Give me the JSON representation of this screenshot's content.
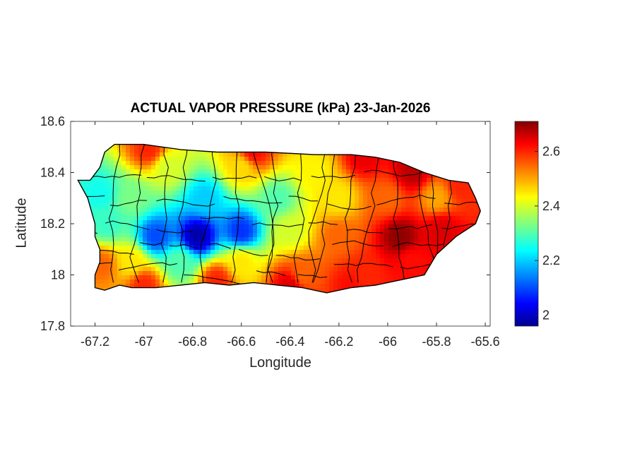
{
  "chart_data": {
    "type": "heatmap",
    "title": "ACTUAL VAPOR PRESSURE (kPa) 23-Jan-2026",
    "xlabel": "Longitude",
    "ylabel": "Latitude",
    "xlim": [
      -67.3,
      -65.58
    ],
    "ylim": [
      17.8,
      18.6
    ],
    "x_ticks": [
      -67.2,
      -67,
      -66.8,
      -66.6,
      -66.4,
      -66.2,
      -66,
      -65.8,
      -65.6
    ],
    "x_tick_labels": [
      "-67.2",
      "-67",
      "-66.8",
      "-66.6",
      "-66.4",
      "-66.2",
      "-66",
      "-65.8",
      "-65.6"
    ],
    "y_ticks": [
      17.8,
      18,
      18.2,
      18.4,
      18.6
    ],
    "y_tick_labels": [
      "17.8",
      "18",
      "18.2",
      "18.4",
      "18.6"
    ],
    "colorbar": {
      "colormap": "jet",
      "range": [
        1.96,
        2.71
      ],
      "ticks": [
        2,
        2.2,
        2.4,
        2.6
      ],
      "tick_labels": [
        "2",
        "2.2",
        "2.4",
        "2.6"
      ],
      "colors": [
        "#00008f",
        "#0000ff",
        "#00ffff",
        "#ffff00",
        "#ff0000",
        "#800000"
      ]
    },
    "outline_color": "#000000",
    "island_outline": [
      [
        -67.27,
        18.37
      ],
      [
        -67.22,
        18.37
      ],
      [
        -67.18,
        18.42
      ],
      [
        -67.16,
        18.48
      ],
      [
        -67.12,
        18.51
      ],
      [
        -67.0,
        18.51
      ],
      [
        -66.85,
        18.49
      ],
      [
        -66.7,
        18.48
      ],
      [
        -66.5,
        18.48
      ],
      [
        -66.3,
        18.47
      ],
      [
        -66.15,
        18.47
      ],
      [
        -66.05,
        18.46
      ],
      [
        -65.95,
        18.44
      ],
      [
        -65.85,
        18.4
      ],
      [
        -65.75,
        18.37
      ],
      [
        -65.67,
        18.36
      ],
      [
        -65.64,
        18.3
      ],
      [
        -65.62,
        18.25
      ],
      [
        -65.64,
        18.2
      ],
      [
        -65.72,
        18.15
      ],
      [
        -65.8,
        18.08
      ],
      [
        -65.85,
        18.0
      ],
      [
        -65.95,
        17.98
      ],
      [
        -66.05,
        17.96
      ],
      [
        -66.15,
        17.95
      ],
      [
        -66.25,
        17.93
      ],
      [
        -66.35,
        17.95
      ],
      [
        -66.45,
        17.96
      ],
      [
        -66.55,
        17.97
      ],
      [
        -66.65,
        17.96
      ],
      [
        -66.75,
        17.97
      ],
      [
        -66.85,
        17.96
      ],
      [
        -66.95,
        17.95
      ],
      [
        -67.05,
        17.95
      ],
      [
        -67.1,
        17.96
      ],
      [
        -67.16,
        17.94
      ],
      [
        -67.2,
        17.95
      ],
      [
        -67.2,
        18.0
      ],
      [
        -67.18,
        18.05
      ],
      [
        -67.18,
        18.1
      ],
      [
        -67.2,
        18.15
      ],
      [
        -67.2,
        18.2
      ],
      [
        -67.23,
        18.3
      ],
      [
        -67.27,
        18.37
      ]
    ],
    "value_field": [
      {
        "lon": -66.98,
        "lat": 18.49,
        "value": 2.6
      },
      {
        "lon": -66.55,
        "lat": 18.48,
        "value": 2.62
      },
      {
        "lon": -66.1,
        "lat": 18.46,
        "value": 2.64
      },
      {
        "lon": -65.9,
        "lat": 18.4,
        "value": 2.67
      },
      {
        "lon": -65.7,
        "lat": 18.35,
        "value": 2.6
      },
      {
        "lon": -66.9,
        "lat": 18.42,
        "value": 2.4
      },
      {
        "lon": -66.6,
        "lat": 18.42,
        "value": 2.46
      },
      {
        "lon": -66.3,
        "lat": 18.4,
        "value": 2.44
      },
      {
        "lon": -67.18,
        "lat": 18.32,
        "value": 2.25
      },
      {
        "lon": -67.05,
        "lat": 18.3,
        "value": 2.33
      },
      {
        "lon": -66.75,
        "lat": 18.3,
        "value": 2.2
      },
      {
        "lon": -66.45,
        "lat": 18.3,
        "value": 2.3
      },
      {
        "lon": -66.2,
        "lat": 18.3,
        "value": 2.45
      },
      {
        "lon": -66.0,
        "lat": 18.3,
        "value": 2.55
      },
      {
        "lon": -65.8,
        "lat": 18.3,
        "value": 2.5
      },
      {
        "lon": -67.15,
        "lat": 18.2,
        "value": 2.28
      },
      {
        "lon": -66.95,
        "lat": 18.15,
        "value": 2.1
      },
      {
        "lon": -66.78,
        "lat": 18.15,
        "value": 1.98
      },
      {
        "lon": -66.6,
        "lat": 18.17,
        "value": 2.08
      },
      {
        "lon": -66.4,
        "lat": 18.17,
        "value": 2.4
      },
      {
        "lon": -66.2,
        "lat": 18.15,
        "value": 2.55
      },
      {
        "lon": -65.95,
        "lat": 18.15,
        "value": 2.7
      },
      {
        "lon": -65.78,
        "lat": 18.18,
        "value": 2.65
      },
      {
        "lon": -67.17,
        "lat": 18.04,
        "value": 2.55
      },
      {
        "lon": -67.05,
        "lat": 18.05,
        "value": 2.45
      },
      {
        "lon": -66.85,
        "lat": 18.05,
        "value": 2.3
      },
      {
        "lon": -66.6,
        "lat": 18.05,
        "value": 2.45
      },
      {
        "lon": -66.35,
        "lat": 18.0,
        "value": 2.55
      },
      {
        "lon": -66.1,
        "lat": 18.0,
        "value": 2.6
      },
      {
        "lon": -65.9,
        "lat": 18.05,
        "value": 2.62
      },
      {
        "lon": -67.0,
        "lat": 17.96,
        "value": 2.6
      },
      {
        "lon": -66.7,
        "lat": 17.98,
        "value": 2.6
      },
      {
        "lon": -66.4,
        "lat": 17.96,
        "value": 2.65
      },
      {
        "lon": -66.15,
        "lat": 17.96,
        "value": 2.62
      }
    ]
  }
}
